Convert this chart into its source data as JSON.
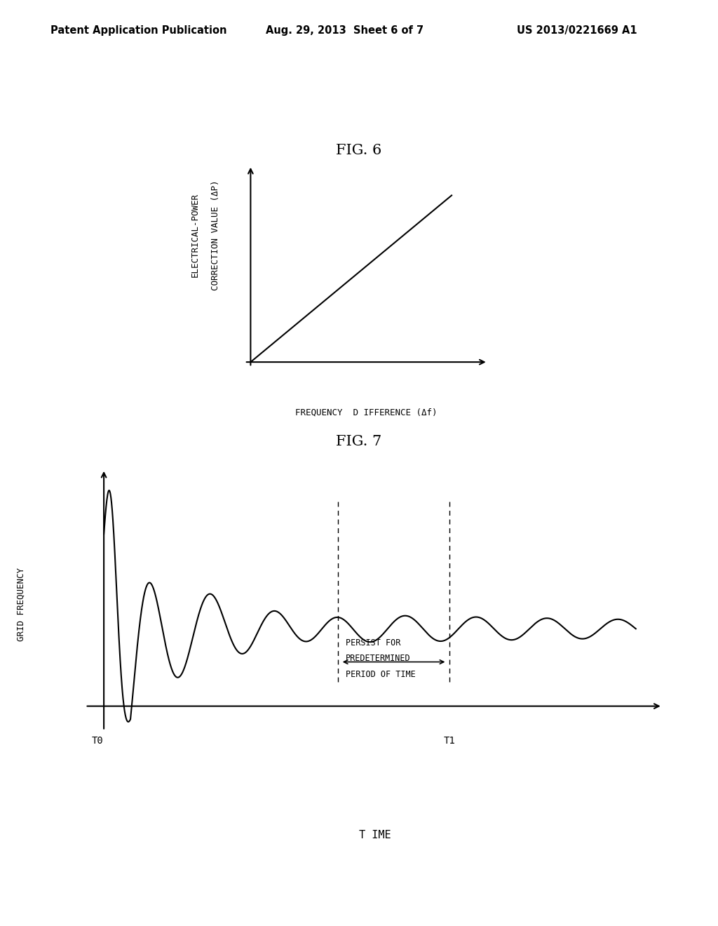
{
  "background_color": "#ffffff",
  "header_left": "Patent Application Publication",
  "header_mid": "Aug. 29, 2013  Sheet 6 of 7",
  "header_right": "US 2013/0221669 A1",
  "fig6_title": "FIG. 6",
  "fig6_ylabel_line1": "ELECTRICAL-POWER",
  "fig6_ylabel_line2": "CORRECTION VALUE (ΔP)",
  "fig6_xlabel": "FREQUENCY  D IFFERENCE (Δf)",
  "fig7_title": "FIG. 7",
  "fig7_ylabel": "GRID FREQUENCY",
  "fig7_xlabel": "T IME",
  "fig7_t0_label": "T0",
  "fig7_t1_label": "T1",
  "fig7_annotation_line1": "PERSIST FOR",
  "fig7_annotation_line2": "PREDETERMINED",
  "fig7_annotation_line3": "PERIOD OF TIME",
  "line_color": "#000000",
  "axis_color": "#000000",
  "text_color": "#000000",
  "header_fontsize": 10.5,
  "fig_title_fontsize": 15,
  "axis_label_fontsize": 9,
  "annotation_fontsize": 8.5
}
